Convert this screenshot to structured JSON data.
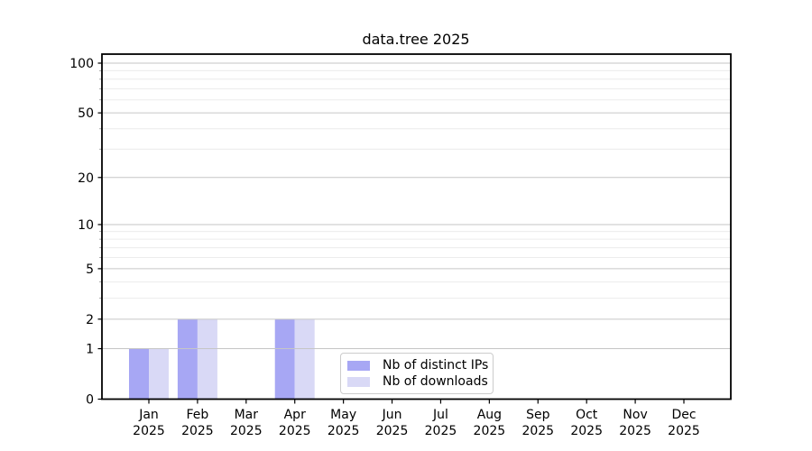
{
  "chart_data": {
    "type": "bar",
    "title": "data.tree 2025",
    "year": "2025",
    "categories": [
      "Jan",
      "Feb",
      "Mar",
      "Apr",
      "May",
      "Jun",
      "Jul",
      "Aug",
      "Sep",
      "Oct",
      "Nov",
      "Dec"
    ],
    "series": [
      {
        "name": "Nb of distinct IPs",
        "color": "#a7a7f4",
        "values": [
          1,
          2,
          0,
          2,
          0,
          0,
          0,
          0,
          0,
          0,
          0,
          0
        ]
      },
      {
        "name": "Nb of downloads",
        "color": "#d9d9f6",
        "values": [
          1,
          2,
          0,
          2,
          0,
          0,
          0,
          0,
          0,
          0,
          0,
          0
        ]
      }
    ],
    "yscale": "log10(1+v)",
    "yticks": [
      0,
      1,
      2,
      5,
      10,
      20,
      50,
      100
    ],
    "minor_yticks": [
      3,
      4,
      6,
      7,
      8,
      9,
      30,
      40,
      60,
      70,
      80,
      90
    ],
    "ylim": [
      0,
      110
    ],
    "grid": true,
    "legend_position": "lower center",
    "colors": {
      "spine": "#000000",
      "major_grid": "#c6c6c6",
      "minor_grid": "#ececec",
      "tick": "#000000",
      "minor_tick": "#999999"
    }
  }
}
